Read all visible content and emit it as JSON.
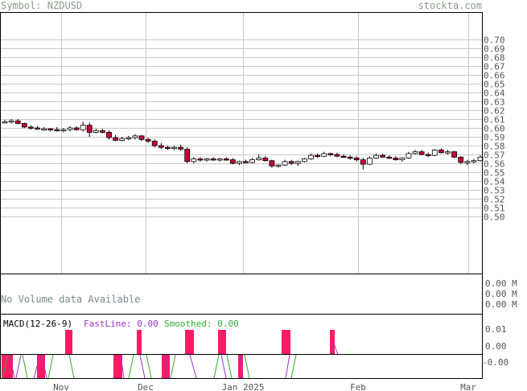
{
  "header": {
    "symbol": "Symbol: NZDUSD",
    "site": "stockta.com"
  },
  "price_panel": {
    "y_ticks": [
      "0.70",
      "0.69",
      "0.68",
      "0.67",
      "0.66",
      "0.65",
      "0.64",
      "0.63",
      "0.62",
      "0.61",
      "0.60",
      "0.59",
      "0.58",
      "0.57",
      "0.56",
      "0.55",
      "0.54",
      "0.53",
      "0.52",
      "0.51",
      "0.50"
    ]
  },
  "volume_panel": {
    "message": "No Volume data Available",
    "y_ticks": [
      "0.00 M",
      "0.00 M",
      "0.00 M"
    ]
  },
  "macd_panel": {
    "label": "MACD(12-26-9)",
    "fast_label": "FastLine: 0.00",
    "smooth_label": "Smoothed: 0.00",
    "y_ticks": [
      "0.01",
      "0.00",
      "-0.00"
    ]
  },
  "x_axis": {
    "labels": [
      "Nov",
      "Dec",
      "Jan 2025",
      "Feb",
      "Mar"
    ]
  },
  "colors": {
    "up": "#ffffff",
    "down": "#cc0033",
    "macd_bar": "#ff1a66",
    "fast": "#9933cc",
    "smooth": "#33aa33",
    "grid": "#c8c8c8"
  },
  "chart_data": {
    "type": "candlestick",
    "symbol": "NZDUSD",
    "x_labels": [
      "Nov",
      "Dec",
      "Jan 2025",
      "Feb",
      "Mar"
    ],
    "ylim": [
      0.49,
      0.7
    ],
    "ohlc": [
      [
        0.607,
        0.609,
        0.605,
        0.607
      ],
      [
        0.607,
        0.61,
        0.605,
        0.608
      ],
      [
        0.608,
        0.61,
        0.604,
        0.605
      ],
      [
        0.605,
        0.606,
        0.6,
        0.601
      ],
      [
        0.601,
        0.603,
        0.598,
        0.6
      ],
      [
        0.6,
        0.602,
        0.598,
        0.599
      ],
      [
        0.599,
        0.601,
        0.597,
        0.599
      ],
      [
        0.599,
        0.6,
        0.596,
        0.598
      ],
      [
        0.598,
        0.601,
        0.596,
        0.597
      ],
      [
        0.597,
        0.6,
        0.595,
        0.598
      ],
      [
        0.598,
        0.602,
        0.596,
        0.6
      ],
      [
        0.6,
        0.602,
        0.597,
        0.598
      ],
      [
        0.598,
        0.607,
        0.596,
        0.603
      ],
      [
        0.603,
        0.606,
        0.59,
        0.595
      ],
      [
        0.595,
        0.599,
        0.594,
        0.597
      ],
      [
        0.597,
        0.599,
        0.594,
        0.595
      ],
      [
        0.595,
        0.597,
        0.587,
        0.589
      ],
      [
        0.589,
        0.592,
        0.585,
        0.586
      ],
      [
        0.586,
        0.59,
        0.585,
        0.588
      ],
      [
        0.588,
        0.591,
        0.586,
        0.589
      ],
      [
        0.589,
        0.593,
        0.587,
        0.591
      ],
      [
        0.591,
        0.592,
        0.585,
        0.587
      ],
      [
        0.587,
        0.589,
        0.583,
        0.585
      ],
      [
        0.585,
        0.587,
        0.578,
        0.58
      ],
      [
        0.58,
        0.583,
        0.576,
        0.578
      ],
      [
        0.578,
        0.58,
        0.575,
        0.577
      ],
      [
        0.577,
        0.58,
        0.575,
        0.578
      ],
      [
        0.578,
        0.581,
        0.574,
        0.576
      ],
      [
        0.576,
        0.578,
        0.56,
        0.562
      ],
      [
        0.562,
        0.567,
        0.56,
        0.565
      ],
      [
        0.565,
        0.567,
        0.562,
        0.564
      ],
      [
        0.564,
        0.566,
        0.562,
        0.565
      ],
      [
        0.565,
        0.567,
        0.563,
        0.564
      ],
      [
        0.564,
        0.566,
        0.562,
        0.565
      ],
      [
        0.565,
        0.567,
        0.563,
        0.564
      ],
      [
        0.564,
        0.566,
        0.559,
        0.56
      ],
      [
        0.56,
        0.563,
        0.558,
        0.562
      ],
      [
        0.562,
        0.564,
        0.56,
        0.561
      ],
      [
        0.561,
        0.566,
        0.56,
        0.564
      ],
      [
        0.564,
        0.57,
        0.563,
        0.566
      ],
      [
        0.566,
        0.568,
        0.562,
        0.563
      ],
      [
        0.563,
        0.564,
        0.555,
        0.557
      ],
      [
        0.557,
        0.559,
        0.555,
        0.558
      ],
      [
        0.558,
        0.564,
        0.557,
        0.562
      ],
      [
        0.562,
        0.564,
        0.558,
        0.56
      ],
      [
        0.56,
        0.563,
        0.557,
        0.562
      ],
      [
        0.562,
        0.566,
        0.561,
        0.565
      ],
      [
        0.565,
        0.571,
        0.564,
        0.569
      ],
      [
        0.569,
        0.571,
        0.566,
        0.568
      ],
      [
        0.568,
        0.573,
        0.567,
        0.571
      ],
      [
        0.571,
        0.572,
        0.568,
        0.57
      ],
      [
        0.57,
        0.572,
        0.567,
        0.568
      ],
      [
        0.568,
        0.57,
        0.566,
        0.567
      ],
      [
        0.567,
        0.569,
        0.564,
        0.566
      ],
      [
        0.566,
        0.568,
        0.562,
        0.564
      ],
      [
        0.564,
        0.566,
        0.553,
        0.559
      ],
      [
        0.559,
        0.568,
        0.558,
        0.566
      ],
      [
        0.566,
        0.571,
        0.565,
        0.569
      ],
      [
        0.569,
        0.571,
        0.566,
        0.567
      ],
      [
        0.567,
        0.569,
        0.565,
        0.566
      ],
      [
        0.566,
        0.568,
        0.563,
        0.564
      ],
      [
        0.564,
        0.567,
        0.562,
        0.566
      ],
      [
        0.566,
        0.573,
        0.565,
        0.571
      ],
      [
        0.571,
        0.575,
        0.57,
        0.573
      ],
      [
        0.573,
        0.575,
        0.569,
        0.57
      ],
      [
        0.57,
        0.572,
        0.567,
        0.569
      ],
      [
        0.569,
        0.576,
        0.568,
        0.575
      ],
      [
        0.575,
        0.577,
        0.571,
        0.572
      ],
      [
        0.572,
        0.575,
        0.57,
        0.573
      ],
      [
        0.573,
        0.574,
        0.566,
        0.567
      ],
      [
        0.567,
        0.568,
        0.559,
        0.561
      ],
      [
        0.561,
        0.564,
        0.558,
        0.562
      ],
      [
        0.562,
        0.565,
        0.56,
        0.563
      ],
      [
        0.563,
        0.569,
        0.562,
        0.567
      ]
    ]
  }
}
